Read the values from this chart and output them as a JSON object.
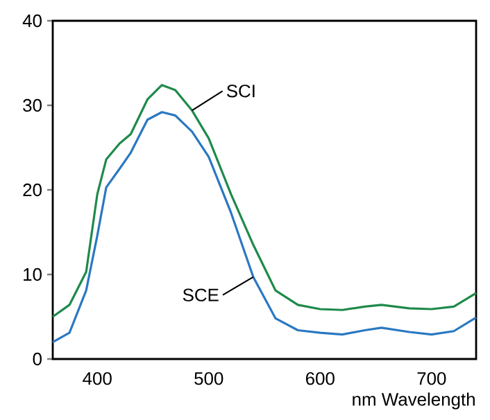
{
  "chart_data": {
    "type": "line",
    "xlabel": "nm Wavelength",
    "xlim": [
      360,
      740
    ],
    "ylim": [
      0,
      40
    ],
    "xticks": [
      400,
      500,
      600,
      700
    ],
    "yticks": [
      0,
      10,
      20,
      30,
      40
    ],
    "grid": false,
    "legend": false,
    "marker": "none",
    "line_style": "solid",
    "series": [
      {
        "name": "SCI",
        "color": "#1e8a4a",
        "x": [
          360,
          375,
          390,
          400,
          408,
          420,
          430,
          445,
          458,
          470,
          485,
          500,
          520,
          540,
          560,
          580,
          600,
          620,
          640,
          655,
          680,
          700,
          720,
          740
        ],
        "values": [
          5.0,
          6.4,
          10.3,
          19.5,
          23.6,
          25.5,
          26.6,
          30.7,
          32.4,
          31.8,
          29.4,
          26.1,
          19.5,
          13.5,
          8.1,
          6.4,
          5.9,
          5.8,
          6.2,
          6.4,
          6.0,
          5.9,
          6.2,
          7.8
        ]
      },
      {
        "name": "SCE",
        "color": "#2a78c2",
        "x": [
          360,
          375,
          390,
          400,
          408,
          420,
          430,
          445,
          458,
          470,
          485,
          500,
          520,
          540,
          560,
          580,
          600,
          620,
          640,
          655,
          680,
          700,
          720,
          740
        ],
        "values": [
          2.0,
          3.1,
          8.1,
          14.6,
          20.3,
          22.5,
          24.4,
          28.3,
          29.2,
          28.8,
          26.9,
          23.9,
          17.3,
          9.7,
          4.8,
          3.4,
          3.1,
          2.9,
          3.4,
          3.7,
          3.2,
          2.9,
          3.3,
          4.9
        ]
      }
    ]
  }
}
